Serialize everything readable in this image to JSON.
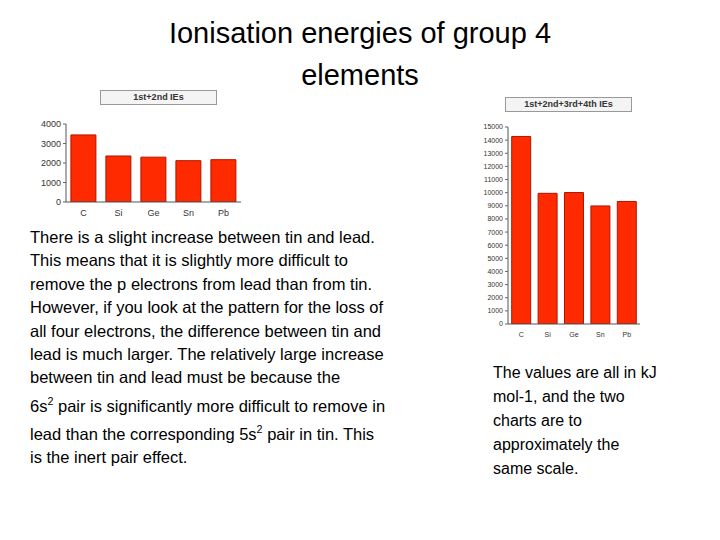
{
  "title": [
    "Ionisation energies of group 4",
    "elements"
  ],
  "body": [
    "There is a slight increase between tin and lead.",
    "This means that it is slightly more difficult to",
    "remove the p electrons from lead than from tin.",
    "However, if you look at the pattern for the loss of",
    "all four electrons, the difference between tin and",
    "lead is much larger. The relatively large increase",
    "between tin and lead must be because the",
    "6s2 pair is significantly more difficult to remove in",
    "lead than the corresponding 5s2 pair in tin. This",
    "is the inert pair effect."
  ],
  "note": [
    "The values are all in kJ",
    "mol-1, and the two",
    "charts are to",
    "approximately the",
    "same scale."
  ],
  "chart_data": [
    {
      "type": "bar",
      "title": "1st+2nd IEs",
      "categories": [
        "C",
        "Si",
        "Ge",
        "Sn",
        "Pb"
      ],
      "values": [
        3440,
        2360,
        2300,
        2120,
        2170
      ],
      "color": "#ff2a00",
      "ylim": [
        0,
        4000
      ],
      "yticks": [
        0,
        1000,
        2000,
        3000,
        4000
      ],
      "grid": false
    },
    {
      "type": "bar",
      "title": "1st+2nd+3rd+4th IEs",
      "categories": [
        "C",
        "Si",
        "Ge",
        "Sn",
        "Pb"
      ],
      "values": [
        14280,
        9950,
        10010,
        8990,
        9330
      ],
      "color": "#ff2a00",
      "ylim": [
        0,
        15000
      ],
      "yticks": [
        0,
        1000,
        2000,
        3000,
        4000,
        5000,
        6000,
        7000,
        8000,
        9000,
        10000,
        11000,
        12000,
        13000,
        14000,
        15000
      ],
      "grid": false
    }
  ]
}
